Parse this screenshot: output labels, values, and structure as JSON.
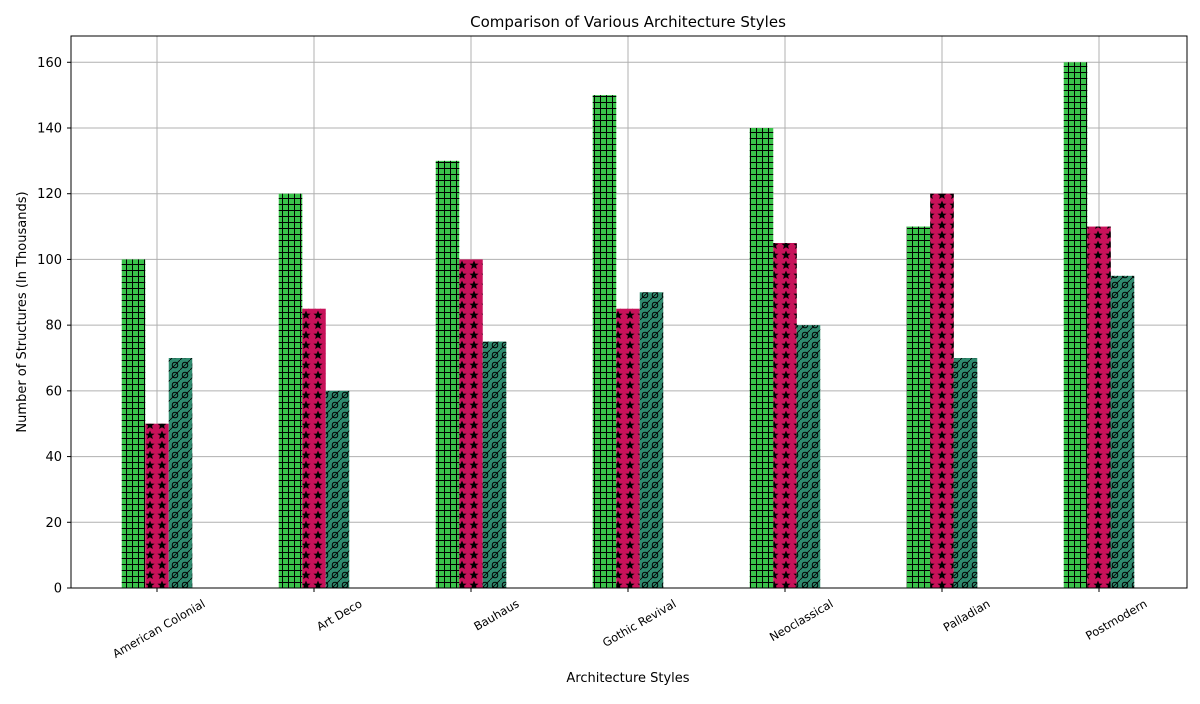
{
  "chart_data": {
    "type": "bar",
    "title": "Comparison of Various Architecture Styles",
    "xlabel": "Architecture Styles",
    "ylabel": "Number of Structures (In Thousands)",
    "categories": [
      "American Colonial",
      "Art Deco",
      "Bauhaus",
      "Gothic Revival",
      "Neoclassical",
      "Palladian",
      "Postmodern"
    ],
    "ylim": [
      0,
      168
    ],
    "yticks": [
      0,
      20,
      40,
      60,
      80,
      100,
      120,
      140,
      160
    ],
    "grid": true,
    "series": [
      {
        "values": [
          100,
          120,
          130,
          150,
          140,
          110,
          160
        ],
        "color": "#3ac24a",
        "pattern": "grid"
      },
      {
        "values": [
          50,
          85,
          100,
          85,
          105,
          120,
          110
        ],
        "color": "#c8125a",
        "pattern": "stars"
      },
      {
        "values": [
          70,
          60,
          75,
          90,
          80,
          70,
          95
        ],
        "color": "#2f8a6e",
        "pattern": "circles-diagonal"
      }
    ]
  }
}
